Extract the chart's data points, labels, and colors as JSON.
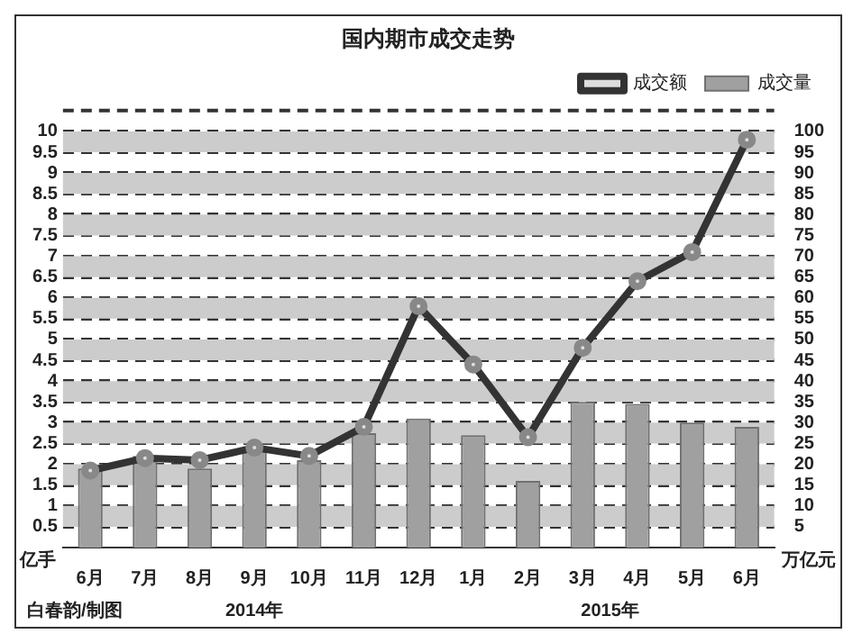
{
  "chart_data": {
    "type": "bar",
    "title": "国内期市成交走势",
    "categories": [
      "6月",
      "7月",
      "8月",
      "9月",
      "10月",
      "11月",
      "12月",
      "1月",
      "2月",
      "3月",
      "4月",
      "5月",
      "6月"
    ],
    "series": [
      {
        "name": "成交量",
        "color": "#a0a0a0",
        "values": [
          1.9,
          2.2,
          1.9,
          2.4,
          2.1,
          2.75,
          3.1,
          2.7,
          1.6,
          3.5,
          3.45,
          3.0,
          2.9
        ]
      },
      {
        "name": "成交额",
        "type": "line",
        "axis": "y2",
        "color": "#333333",
        "marker": "circle",
        "values": [
          18.5,
          21.5,
          21,
          24,
          22,
          29,
          58,
          44,
          26.5,
          48,
          64,
          71,
          98
        ]
      }
    ],
    "ylabel": "亿手",
    "y2label": "万亿元",
    "ylim": [
      0,
      10.5
    ],
    "yticks": [
      0.5,
      1,
      1.5,
      2,
      2.5,
      3,
      3.5,
      4,
      4.5,
      5,
      5.5,
      6,
      6.5,
      7,
      7.5,
      8,
      8.5,
      9,
      9.5,
      10
    ],
    "y2lim": [
      0,
      105
    ],
    "y2ticks": [
      5,
      10,
      15,
      20,
      25,
      30,
      35,
      40,
      45,
      50,
      55,
      60,
      65,
      70,
      75,
      80,
      85,
      90,
      95,
      100
    ],
    "bands": [
      {
        "axis": "y",
        "from": 0.5,
        "to": 1,
        "color": "#cccccc"
      },
      {
        "axis": "y",
        "from": 1.5,
        "to": 2,
        "color": "#cccccc"
      },
      {
        "axis": "y",
        "from": 2.5,
        "to": 3,
        "color": "#cccccc"
      },
      {
        "axis": "y",
        "from": 3.5,
        "to": 4,
        "color": "#cccccc"
      },
      {
        "axis": "y",
        "from": 4.5,
        "to": 5,
        "color": "#cccccc"
      },
      {
        "axis": "y",
        "from": 5.5,
        "to": 6,
        "color": "#cccccc"
      },
      {
        "axis": "y",
        "from": 6.5,
        "to": 7,
        "color": "#cccccc"
      },
      {
        "axis": "y",
        "from": 7.5,
        "to": 8,
        "color": "#cccccc"
      },
      {
        "axis": "y",
        "from": 8.5,
        "to": 9,
        "color": "#cccccc"
      },
      {
        "axis": "y",
        "from": 9.5,
        "to": 10,
        "color": "#cccccc"
      }
    ],
    "annotations": [
      "白春韵/制图",
      "2014年",
      "2015年"
    ],
    "grid": "y",
    "legend": "top right"
  }
}
